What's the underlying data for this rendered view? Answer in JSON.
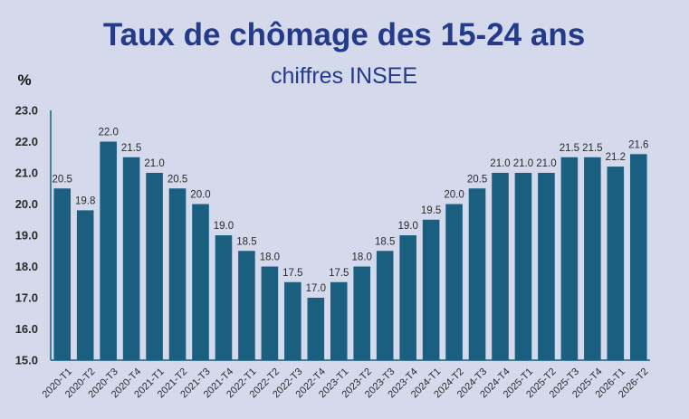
{
  "chart_data": {
    "type": "bar",
    "title": "Taux de chômage des 15-24 ans",
    "subtitle": "chiffres INSEE",
    "ylabel": "%",
    "xlabel": "",
    "ylim": [
      15.0,
      23.0
    ],
    "ytick_step": 1.0,
    "grid": false,
    "legend": "none",
    "bar_color": "#1a5e80",
    "categories": [
      "2020-T1",
      "2020-T2",
      "2020-T3",
      "2020-T4",
      "2021-T1",
      "2021-T2",
      "2021-T3",
      "2021-T4",
      "2022-T1",
      "2022-T2",
      "2022-T3",
      "2022-T4",
      "2023-T1",
      "2023-T2",
      "2023-T3",
      "2023-T4",
      "2024-T1",
      "2024-T2",
      "2024-T3",
      "2024-T4",
      "2025-T1",
      "2025-T2",
      "2025-T3",
      "2025-T4",
      "2026-T1",
      "2026-T2"
    ],
    "values": [
      20.5,
      19.8,
      22.0,
      21.5,
      21.0,
      20.5,
      20.0,
      19.0,
      18.5,
      18.0,
      17.5,
      17.0,
      17.5,
      18.0,
      18.5,
      19.0,
      19.5,
      20.0,
      20.5,
      21.0,
      21.0,
      21.0,
      21.5,
      21.5,
      21.2,
      21.6
    ],
    "data_labels": [
      "20.5",
      "19.8",
      "22.0",
      "21.5",
      "21.0",
      "20.5",
      "20.0",
      "19.0",
      "18.5",
      "18.0",
      "17.5",
      "17.0",
      "17.5",
      "18.0",
      "18.5",
      "19.0",
      "19.5",
      "20.0",
      "20.5",
      "21.0",
      "21.0",
      "21.0",
      "21.5",
      "21.5",
      "21.2",
      "21.6"
    ],
    "ytick_labels": [
      "15.0",
      "16.0",
      "17.0",
      "18.0",
      "19.0",
      "20.0",
      "21.0",
      "22.0",
      "23.0"
    ]
  }
}
